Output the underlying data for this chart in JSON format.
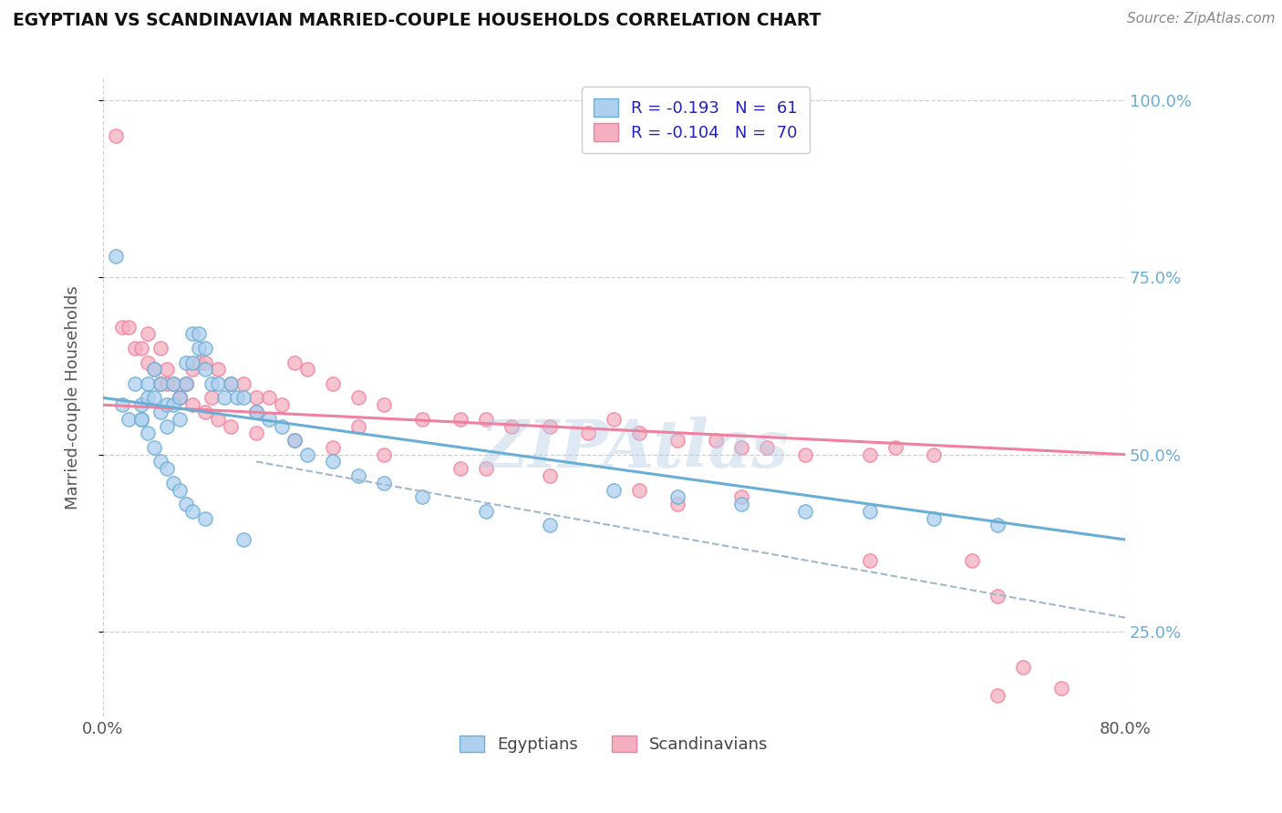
{
  "title": "EGYPTIAN VS SCANDINAVIAN MARRIED-COUPLE HOUSEHOLDS CORRELATION CHART",
  "source": "Source: ZipAtlas.com",
  "ylabel_label": "Married-couple Households",
  "legend_items": [
    {
      "label": "R = -0.193   N =  61"
    },
    {
      "label": "R = -0.104   N =  70"
    }
  ],
  "legend_labels_bottom": [
    "Egyptians",
    "Scandinavians"
  ],
  "blue_color": "#6aaed6",
  "pink_color": "#f080a0",
  "blue_dot_face": "#aed0ee",
  "pink_dot_face": "#f4b0c0",
  "blue_dot_edge": "#6aaed6",
  "pink_dot_edge": "#f080a0",
  "watermark": "ZIPAtlas",
  "watermark_color": "#b8cfe8",
  "x_min": 0.0,
  "x_max": 80.0,
  "y_min": 13.0,
  "y_max": 103.0,
  "blue_scatter_x": [
    1.0,
    1.5,
    2.0,
    2.5,
    3.0,
    3.0,
    3.5,
    3.5,
    4.0,
    4.0,
    4.5,
    4.5,
    5.0,
    5.0,
    5.5,
    5.5,
    6.0,
    6.0,
    6.5,
    6.5,
    7.0,
    7.0,
    7.5,
    7.5,
    8.0,
    8.0,
    8.5,
    9.0,
    9.5,
    10.0,
    10.5,
    11.0,
    12.0,
    13.0,
    14.0,
    15.0,
    16.0,
    18.0,
    20.0,
    22.0,
    25.0,
    30.0,
    35.0,
    40.0,
    45.0,
    50.0,
    55.0,
    60.0,
    65.0,
    70.0,
    3.0,
    3.5,
    4.0,
    4.5,
    5.0,
    5.5,
    6.0,
    6.5,
    7.0,
    8.0,
    11.0
  ],
  "blue_scatter_y": [
    78,
    57,
    55,
    60,
    57,
    55,
    60,
    58,
    62,
    58,
    60,
    56,
    57,
    54,
    60,
    57,
    58,
    55,
    63,
    60,
    67,
    63,
    67,
    65,
    65,
    62,
    60,
    60,
    58,
    60,
    58,
    58,
    56,
    55,
    54,
    52,
    50,
    49,
    47,
    46,
    44,
    42,
    40,
    45,
    44,
    43,
    42,
    42,
    41,
    40,
    55,
    53,
    51,
    49,
    48,
    46,
    45,
    43,
    42,
    41,
    38
  ],
  "pink_scatter_x": [
    1.0,
    1.5,
    2.0,
    2.5,
    3.0,
    3.5,
    4.0,
    4.5,
    5.0,
    5.5,
    6.0,
    6.5,
    7.0,
    7.5,
    8.0,
    9.0,
    10.0,
    11.0,
    12.0,
    13.0,
    14.0,
    15.0,
    16.0,
    18.0,
    20.0,
    22.0,
    25.0,
    28.0,
    30.0,
    32.0,
    35.0,
    38.0,
    40.0,
    42.0,
    45.0,
    48.0,
    50.0,
    52.0,
    55.0,
    60.0,
    62.0,
    65.0,
    68.0,
    70.0,
    72.0,
    75.0,
    5.0,
    6.0,
    7.0,
    8.0,
    9.0,
    10.0,
    12.0,
    15.0,
    18.0,
    22.0,
    28.0,
    35.0,
    42.0,
    50.0,
    60.0,
    70.0,
    3.5,
    4.5,
    6.5,
    8.5,
    12.0,
    20.0,
    30.0,
    45.0
  ],
  "pink_scatter_y": [
    95,
    68,
    68,
    65,
    65,
    63,
    62,
    60,
    62,
    60,
    58,
    60,
    62,
    63,
    63,
    62,
    60,
    60,
    58,
    58,
    57,
    63,
    62,
    60,
    58,
    57,
    55,
    55,
    55,
    54,
    54,
    53,
    55,
    53,
    52,
    52,
    51,
    51,
    50,
    50,
    51,
    50,
    35,
    30,
    20,
    17,
    60,
    58,
    57,
    56,
    55,
    54,
    53,
    52,
    51,
    50,
    48,
    47,
    45,
    44,
    35,
    16,
    67,
    65,
    60,
    58,
    56,
    54,
    48,
    43
  ],
  "blue_line_x0": 0.0,
  "blue_line_x1": 80.0,
  "blue_line_y0": 58.0,
  "blue_line_y1": 38.0,
  "pink_line_x0": 0.0,
  "pink_line_x1": 80.0,
  "pink_line_y0": 57.0,
  "pink_line_y1": 50.0,
  "gray_dash_x0": 12.0,
  "gray_dash_x1": 80.0,
  "gray_dash_y0": 49.0,
  "gray_dash_y1": 27.0,
  "right_yticks": [
    25,
    50,
    75,
    100
  ],
  "right_yticklabels": [
    "25.0%",
    "50.0%",
    "75.0%",
    "100.0%"
  ],
  "xtick_labels": [
    "0.0%",
    "80.0%"
  ]
}
